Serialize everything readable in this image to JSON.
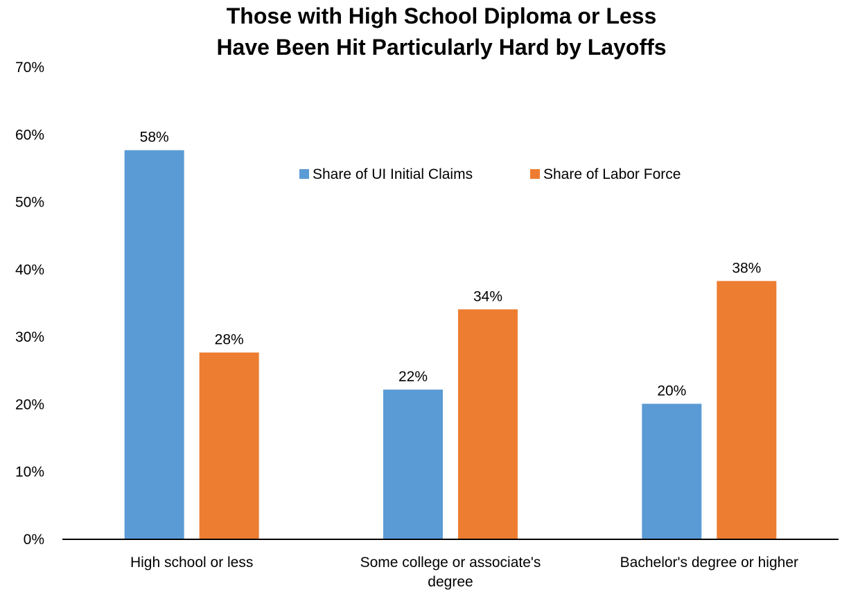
{
  "chart_data": {
    "type": "bar",
    "title_lines": [
      "Those with High School Diploma or Less",
      "Have Been Hit Particularly Hard by Layoffs"
    ],
    "categories": [
      [
        "High school or less"
      ],
      [
        "Some college or associate's",
        "degree"
      ],
      [
        "Bachelor's degree or higher"
      ]
    ],
    "series": [
      {
        "name": "Share of UI Initial Claims",
        "color": "#5B9BD5",
        "values": [
          57.7,
          22.2,
          20.1
        ],
        "labels": [
          "58%",
          "22%",
          "20%"
        ]
      },
      {
        "name": "Share of Labor Force",
        "color": "#ED7D31",
        "values": [
          27.7,
          34.1,
          38.3
        ],
        "labels": [
          "28%",
          "34%",
          "38%"
        ]
      }
    ],
    "ylim": [
      0,
      70
    ],
    "ytick_values": [
      0,
      10,
      20,
      30,
      40,
      50,
      60,
      70
    ],
    "ytick_labels": [
      "0%",
      "10%",
      "20%",
      "30%",
      "40%",
      "50%",
      "60%",
      "70%"
    ],
    "grid": false,
    "legend_position": "top-center"
  }
}
